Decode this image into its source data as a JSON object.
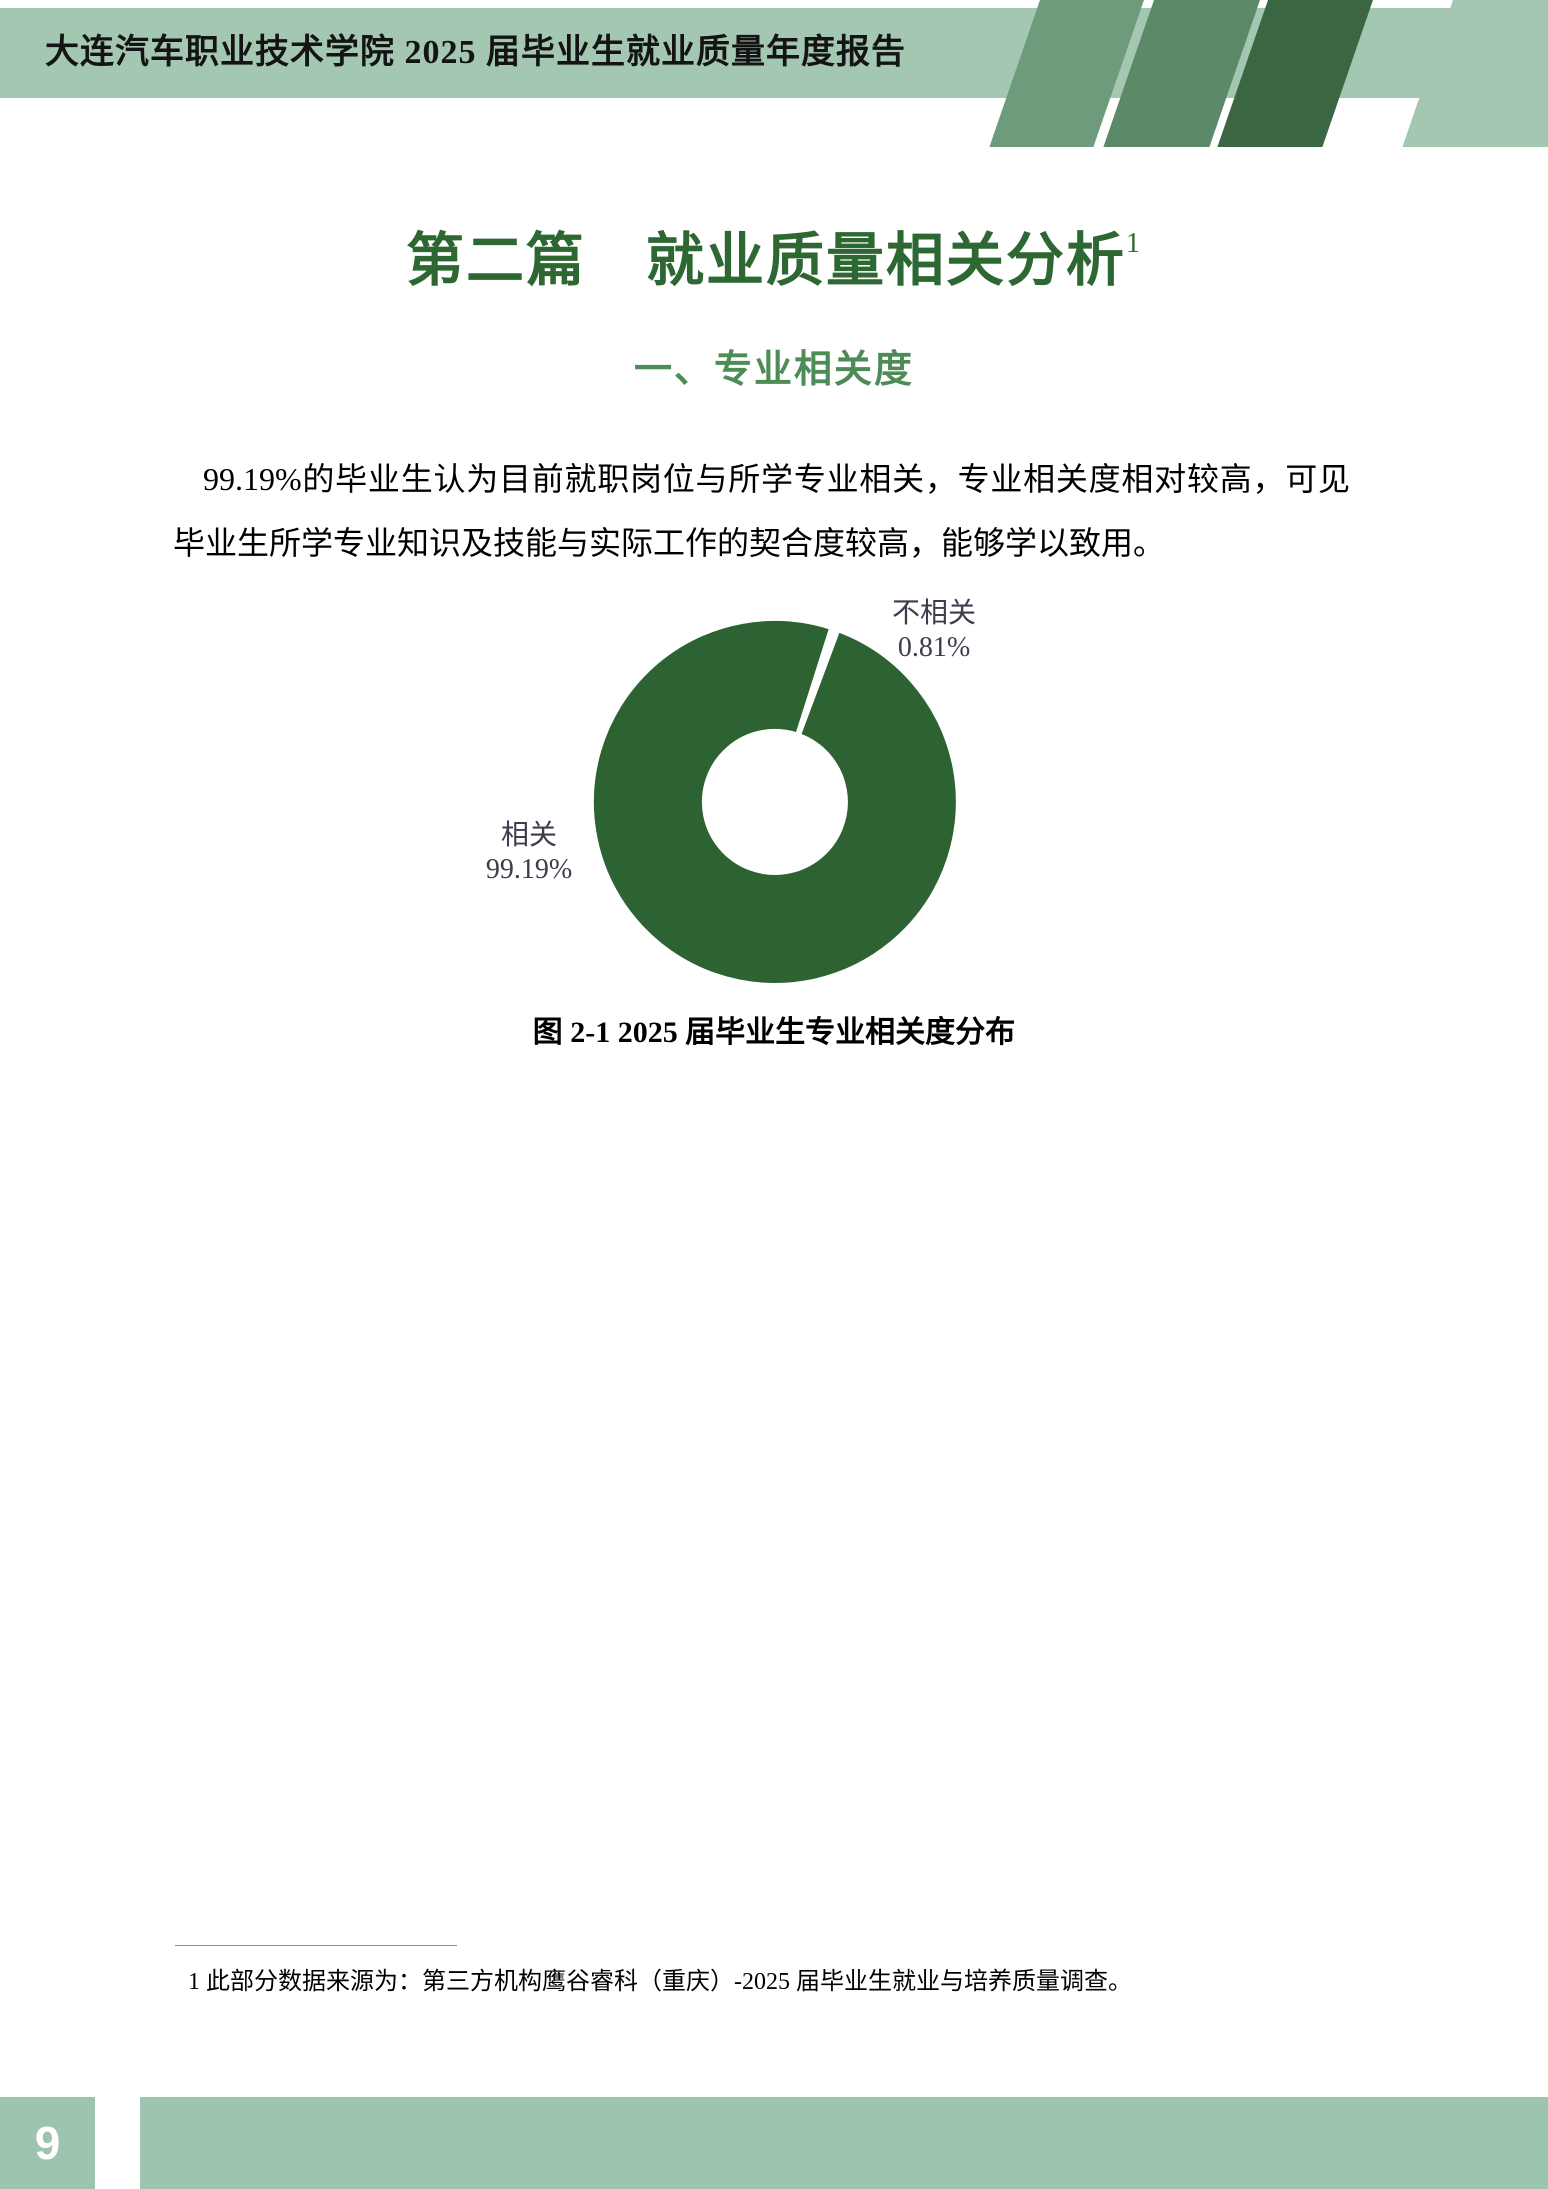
{
  "header": {
    "title": "大连汽车职业技术学院 2025 届毕业生就业质量年度报告"
  },
  "section": {
    "title": "第二篇　就业质量相关分析",
    "footnote_ref": "1",
    "subsection": "一、专业相关度",
    "paragraph": "99.19%的毕业生认为目前就职岗位与所学专业相关，专业相关度相对较高，可见毕业生所学专业知识及技能与实际工作的契合度较高，能够学以致用。",
    "figure_caption": "图 2-1 2025 届毕业生专业相关度分布",
    "footnote": "1  此部分数据来源为：第三方机构鹰谷睿科（重庆）-2025 届毕业生就业与培养质量调查。"
  },
  "footer": {
    "page_number": "9"
  },
  "chart_data": {
    "type": "pie",
    "donut": true,
    "title": "图 2-1 2025 届毕业生专业相关度分布",
    "categories": [
      "相关",
      "不相关"
    ],
    "values": [
      99.19,
      0.81
    ],
    "unit": "%",
    "labels": [
      {
        "name": "相关",
        "value": "99.19%"
      },
      {
        "name": "不相关",
        "value": "0.81%"
      }
    ],
    "colors": [
      "#2d6232",
      "#ffffff"
    ],
    "start_angle_deg": 20.5,
    "legend": "none",
    "label_position": "outside"
  },
  "colors": {
    "banner": "#a4c7b1",
    "stripe1": "#6f9b7d",
    "stripe2": "#5c8a68",
    "stripe3": "#3a6742",
    "title-green": "#2d6732",
    "subtitle-green": "#4d8b57",
    "label-ink": "#3d3d4d",
    "footer-bar": "#9cc4af"
  }
}
